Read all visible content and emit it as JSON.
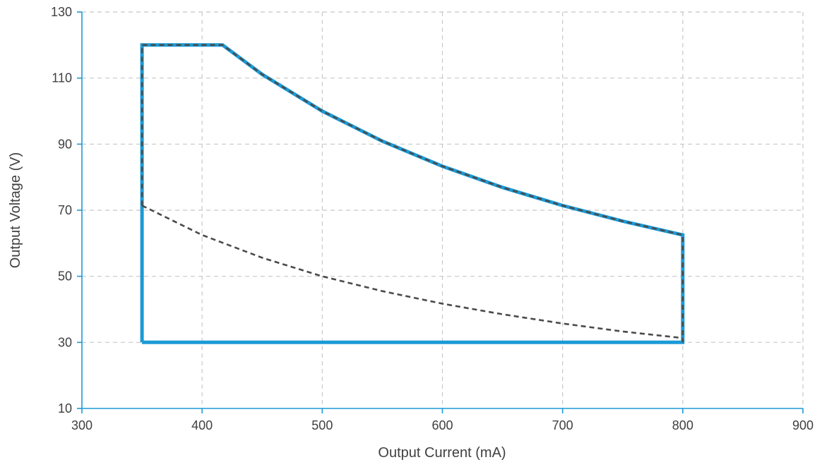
{
  "chart_data": {
    "type": "line",
    "xlabel": "Output Current (mA)",
    "ylabel": "Output Voltage (V)",
    "xlim": [
      300,
      900
    ],
    "ylim": [
      10,
      130
    ],
    "xticks": [
      300,
      400,
      500,
      600,
      700,
      800,
      900
    ],
    "yticks": [
      10,
      30,
      50,
      70,
      90,
      110,
      130
    ],
    "grid": true,
    "series": [
      {
        "style": "solid",
        "color": "#1b9ad6",
        "x": [
          350,
          350,
          417,
          450,
          500,
          550,
          600,
          650,
          700,
          750,
          800,
          800,
          350
        ],
        "y": [
          30,
          120,
          120,
          111.1,
          100,
          90.9,
          83.3,
          76.9,
          71.4,
          66.7,
          62.5,
          30,
          30
        ]
      },
      {
        "style": "dashed",
        "color": "#4a4a4a",
        "x": [
          350,
          350,
          417,
          450,
          500,
          550,
          600,
          650,
          700,
          750,
          800,
          800
        ],
        "y": [
          71.4,
          120,
          120,
          111.1,
          100,
          90.9,
          83.3,
          76.9,
          71.4,
          66.7,
          62.5,
          30
        ]
      },
      {
        "style": "dashed",
        "color": "#4a4a4a",
        "x": [
          350,
          400,
          450,
          500,
          550,
          600,
          650,
          700,
          750,
          800
        ],
        "y": [
          71.4,
          62.5,
          55.6,
          50,
          45.5,
          41.7,
          38.5,
          35.7,
          33.3,
          31.3
        ]
      }
    ]
  }
}
